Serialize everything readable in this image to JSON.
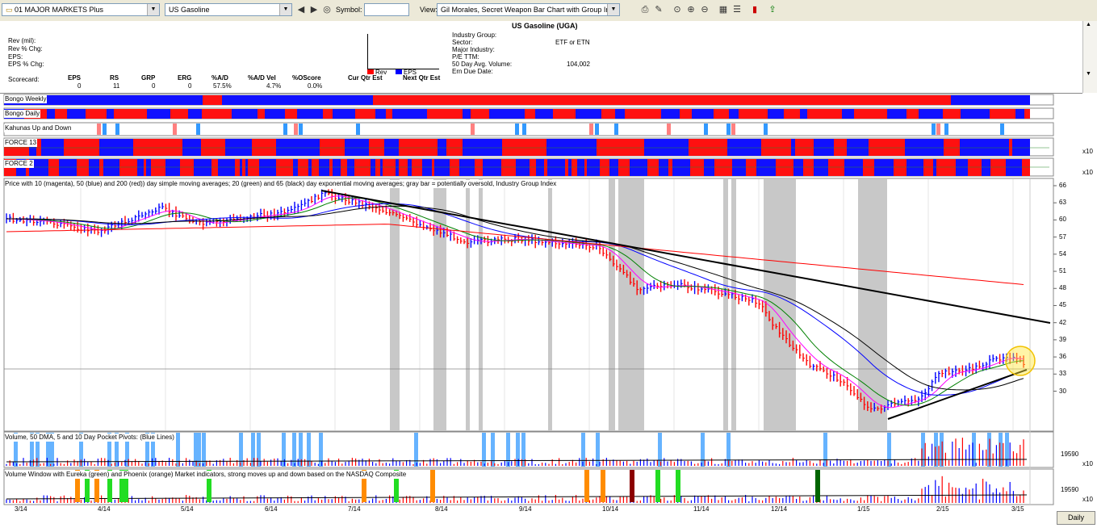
{
  "toolbar": {
    "list_value": "01 MAJOR MARKETS Plus",
    "symbol_combo_value": "US Gasoline",
    "symbol_label": "Symbol:",
    "symbol_value": "",
    "view_label": "View:",
    "view_value": "Gil Morales, Secret Weapon Bar Chart with Group Index",
    "icons": [
      "folder-icon",
      "back-icon",
      "forward-icon",
      "binoculars-icon",
      "print-icon",
      "edit-icon",
      "zoom-icon",
      "zoom-in-icon",
      "zoom-out-icon",
      "grid-icon",
      "indicator-icon",
      "bar-chart-icon",
      "export-icon"
    ]
  },
  "info": {
    "title": "US Gasoline (UGA)",
    "left_labels": [
      "Rev (mil):",
      "Rev % Chg:",
      "EPS:",
      "EPS % Chg:"
    ],
    "scorecard_label": "Scorecard:",
    "scorecard": [
      {
        "h": "EPS",
        "v": "0"
      },
      {
        "h": "RS",
        "v": "11"
      },
      {
        "h": "GRP",
        "v": "0"
      },
      {
        "h": "ERG",
        "v": "0"
      },
      {
        "h": "%A/D",
        "v": "57.5%"
      },
      {
        "h": "%A/D Vel",
        "v": "4.7%"
      },
      {
        "h": "%OScore",
        "v": "0.0%"
      }
    ],
    "cur_qtr": "Cur Qtr Est",
    "next_qtr": "Next Qtr Est",
    "legend_rev": "Rev",
    "legend_eps": "EPS",
    "fields": [
      {
        "label": "Industry Group:",
        "value": ""
      },
      {
        "label": "Sector:",
        "value": "ETF or ETN"
      },
      {
        "label": "Major Industry:",
        "value": ""
      },
      {
        "label": "P/E TTM:",
        "value": ""
      },
      {
        "label": "50 Day Avg. Volume:",
        "value": "104,002"
      },
      {
        "label": "Ern Due Date:",
        "value": ""
      }
    ]
  },
  "strips": {
    "bongo_weekly": "Bongo Weekly",
    "bongo_daily": "Bongo Daily",
    "kahunas": "Kahunas Up and Down",
    "force13": "FORCE 13",
    "force2": "FORCE 2",
    "x10": "x10"
  },
  "price_panel": {
    "label": "Price with 10 (magenta), 50 (blue) and 200 (red)) day simple moving averages; 20 (green) and 65 (black) day exponential moving averages; gray bar = potentially oversold, Industry Group Index",
    "y_ticks": [
      "66",
      "63",
      "60",
      "57",
      "54",
      "51",
      "48",
      "45",
      "42",
      "39",
      "36",
      "33",
      "30"
    ],
    "colors": {
      "sma10": "#ff00ff",
      "sma50": "#0000ff",
      "sma200": "#ff0000",
      "ema20": "#008000",
      "ema65": "#000000",
      "oversold": "#c8c8c8",
      "up": "#0000ff",
      "down": "#ff0000"
    }
  },
  "volume_panel": {
    "label": "Volume, 50 DMA, 5 and 10 Day Pocket Pivots: (Blue Lines)",
    "y_tick": "19590",
    "scale": "x10"
  },
  "volume_window": {
    "label": "Volume Window with Eureka (green) and Phoenix (orange) Market indicators, strong moves up and down based on the NASDAQ Composite",
    "y_tick": "19590",
    "scale": "x10"
  },
  "x_axis": [
    "3/14",
    "4/14",
    "5/14",
    "6/14",
    "7/14",
    "8/14",
    "9/14",
    "10/14",
    "11/14",
    "12/14",
    "1/15",
    "2/15",
    "3/15"
  ],
  "daily_button": "Daily"
}
